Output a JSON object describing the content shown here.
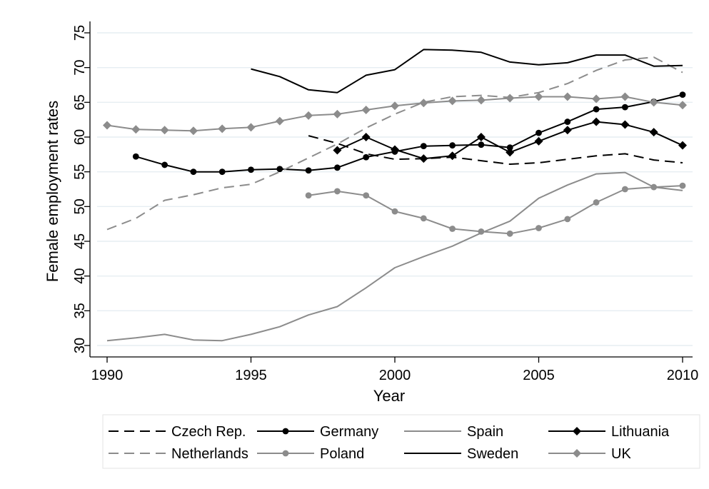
{
  "chart_data": {
    "type": "line",
    "title": "",
    "xlabel": "Year",
    "ylabel": "Female employment rates",
    "xlim": [
      1990,
      2010
    ],
    "ylim": [
      30,
      75
    ],
    "xticks": [
      1990,
      1995,
      2000,
      2005,
      2010
    ],
    "yticks": [
      30,
      35,
      40,
      45,
      50,
      55,
      60,
      65,
      70,
      75
    ],
    "grid": "horizontal",
    "legend_position": "bottom",
    "series": [
      {
        "name": "Czech Rep.",
        "color": "#000000",
        "dash": "dashed",
        "marker": "none",
        "x": [
          1997,
          1998,
          1999,
          2000,
          2001,
          2002,
          2003,
          2004,
          2005,
          2006,
          2007,
          2008,
          2009,
          2010
        ],
        "y": [
          60.2,
          59.1,
          57.6,
          56.8,
          56.9,
          57.1,
          56.6,
          56.1,
          56.3,
          56.8,
          57.3,
          57.6,
          56.7,
          56.3
        ]
      },
      {
        "name": "Germany",
        "color": "#000000",
        "dash": "solid",
        "marker": "circle",
        "x": [
          1991,
          1992,
          1993,
          1994,
          1995,
          1996,
          1997,
          1998,
          1999,
          2000,
          2001,
          2002,
          2003,
          2004,
          2005,
          2006,
          2007,
          2008,
          2009,
          2010
        ],
        "y": [
          57.2,
          56.0,
          55.0,
          55.0,
          55.3,
          55.4,
          55.2,
          55.6,
          57.1,
          57.9,
          58.7,
          58.8,
          58.9,
          58.5,
          60.6,
          62.2,
          64.0,
          64.3,
          65.1,
          66.1
        ]
      },
      {
        "name": "Spain",
        "color": "#8c8c8c",
        "dash": "solid",
        "marker": "none",
        "x": [
          1990,
          1991,
          1992,
          1993,
          1994,
          1995,
          1996,
          1997,
          1998,
          1999,
          2000,
          2001,
          2002,
          2003,
          2004,
          2005,
          2006,
          2007,
          2008,
          2009,
          2010
        ],
        "y": [
          30.7,
          31.1,
          31.6,
          30.8,
          30.7,
          31.6,
          32.7,
          34.4,
          35.6,
          38.3,
          41.2,
          42.8,
          44.3,
          46.2,
          47.9,
          51.2,
          53.1,
          54.7,
          54.9,
          52.8,
          52.3
        ]
      },
      {
        "name": "Lithuania",
        "color": "#000000",
        "dash": "solid",
        "marker": "diamond",
        "x": [
          1998,
          1999,
          2000,
          2001,
          2002,
          2003,
          2004,
          2005,
          2006,
          2007,
          2008,
          2009,
          2010
        ],
        "y": [
          58.1,
          60.0,
          58.2,
          56.9,
          57.3,
          60.0,
          57.8,
          59.4,
          61.0,
          62.2,
          61.8,
          60.7,
          58.8
        ]
      },
      {
        "name": "Netherlands",
        "color": "#8c8c8c",
        "dash": "dashed",
        "marker": "none",
        "x": [
          1990,
          1991,
          1992,
          1993,
          1994,
          1995,
          1996,
          1997,
          1998,
          1999,
          2000,
          2001,
          2002,
          2003,
          2004,
          2005,
          2006,
          2007,
          2008,
          2009,
          2010
        ],
        "y": [
          46.7,
          48.3,
          50.9,
          51.7,
          52.7,
          53.2,
          55.0,
          57.0,
          59.0,
          61.3,
          63.3,
          65.0,
          65.8,
          66.0,
          65.7,
          66.4,
          67.7,
          69.6,
          71.1,
          71.5,
          69.3
        ]
      },
      {
        "name": "Poland",
        "color": "#8c8c8c",
        "dash": "solid",
        "marker": "circle",
        "x": [
          1997,
          1998,
          1999,
          2000,
          2001,
          2002,
          2003,
          2004,
          2005,
          2006,
          2007,
          2008,
          2009,
          2010
        ],
        "y": [
          51.6,
          52.2,
          51.6,
          49.3,
          48.3,
          46.8,
          46.4,
          46.1,
          46.9,
          48.2,
          50.6,
          52.5,
          52.8,
          53.0
        ]
      },
      {
        "name": "Sweden",
        "color": "#000000",
        "dash": "solid",
        "marker": "none",
        "x": [
          1995,
          1996,
          1997,
          1998,
          1999,
          2000,
          2001,
          2002,
          2003,
          2004,
          2005,
          2006,
          2007,
          2008,
          2009,
          2010
        ],
        "y": [
          69.8,
          68.7,
          66.8,
          66.4,
          68.9,
          69.7,
          72.6,
          72.5,
          72.2,
          70.8,
          70.4,
          70.7,
          71.8,
          71.8,
          70.2,
          70.3
        ]
      },
      {
        "name": "UK",
        "color": "#8c8c8c",
        "dash": "solid",
        "marker": "diamond",
        "x": [
          1990,
          1991,
          1992,
          1993,
          1994,
          1995,
          1996,
          1997,
          1998,
          1999,
          2000,
          2001,
          2002,
          2003,
          2004,
          2005,
          2006,
          2007,
          2008,
          2009,
          2010
        ],
        "y": [
          61.7,
          61.1,
          61.0,
          60.9,
          61.2,
          61.4,
          62.3,
          63.1,
          63.3,
          63.9,
          64.5,
          64.9,
          65.2,
          65.3,
          65.6,
          65.8,
          65.8,
          65.5,
          65.8,
          65.0,
          64.6
        ]
      }
    ]
  }
}
